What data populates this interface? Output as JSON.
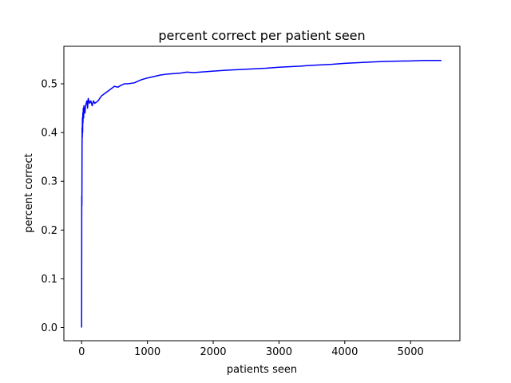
{
  "chart_data": {
    "type": "line",
    "title": "percent correct per patient seen",
    "xlabel": "patients seen",
    "ylabel": "percent correct",
    "xlim": [
      -270,
      5750
    ],
    "ylim": [
      -0.027,
      0.577
    ],
    "xticks": [
      0,
      1000,
      2000,
      3000,
      4000,
      5000
    ],
    "yticks": [
      0.0,
      0.1,
      0.2,
      0.3,
      0.4,
      0.5
    ],
    "ytick_labels": [
      "0.0",
      "0.1",
      "0.2",
      "0.3",
      "0.4",
      "0.5"
    ],
    "grid": false,
    "series": [
      {
        "color": "#0000ff",
        "x": [
          0,
          2,
          4,
          6,
          8,
          10,
          12,
          15,
          18,
          20,
          25,
          30,
          35,
          40,
          50,
          60,
          70,
          80,
          90,
          100,
          120,
          140,
          160,
          180,
          200,
          250,
          300,
          350,
          400,
          450,
          500,
          550,
          600,
          650,
          700,
          800,
          900,
          1000,
          1100,
          1200,
          1300,
          1400,
          1500,
          1600,
          1700,
          1800,
          2000,
          2200,
          2500,
          2800,
          3000,
          3300,
          3500,
          3800,
          4000,
          4300,
          4600,
          5000,
          5200,
          5470
        ],
        "values": [
          0.0,
          0.27,
          0.25,
          0.36,
          0.41,
          0.39,
          0.43,
          0.4,
          0.44,
          0.42,
          0.45,
          0.43,
          0.455,
          0.445,
          0.44,
          0.455,
          0.46,
          0.465,
          0.45,
          0.47,
          0.46,
          0.465,
          0.455,
          0.465,
          0.46,
          0.465,
          0.475,
          0.48,
          0.485,
          0.49,
          0.495,
          0.493,
          0.497,
          0.5,
          0.5,
          0.502,
          0.508,
          0.512,
          0.515,
          0.518,
          0.52,
          0.521,
          0.522,
          0.524,
          0.523,
          0.524,
          0.526,
          0.528,
          0.53,
          0.532,
          0.534,
          0.536,
          0.538,
          0.54,
          0.542,
          0.544,
          0.546,
          0.547,
          0.548,
          0.548
        ]
      }
    ]
  }
}
